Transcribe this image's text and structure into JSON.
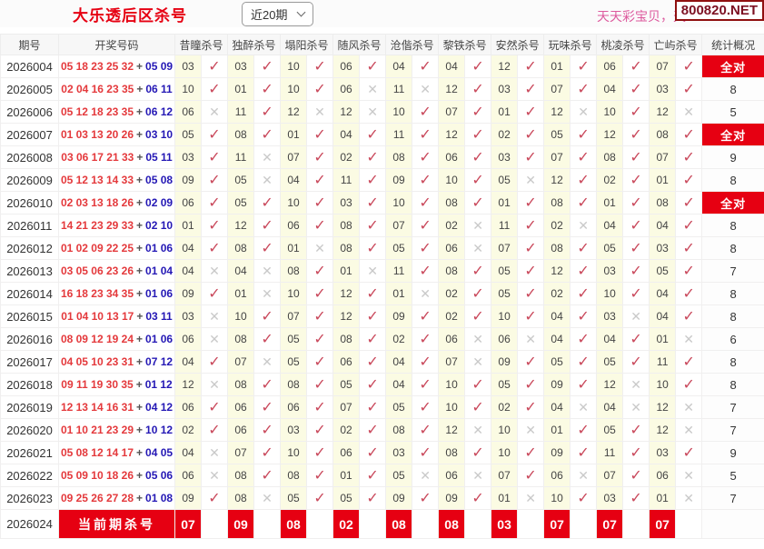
{
  "topbar": {
    "title": "大乐透后区杀号",
    "range_dropdown": "近20期",
    "watermark": "天天彩宝贝，天",
    "site_badge": "800820.NET"
  },
  "marks": {
    "hit": "✓",
    "miss": "✕"
  },
  "table": {
    "columns": [
      "期号",
      "开奖号码",
      "昔瞳杀号",
      "独醉杀号",
      "塌阳杀号",
      "随风杀号",
      "沧偕杀号",
      "黎铁杀号",
      "安然杀号",
      "玩味杀号",
      "桃凌杀号",
      "亡屿杀号",
      "统计概况"
    ],
    "plus_sign": "+",
    "full_match_label": "全对",
    "rows": [
      {
        "period": "2026004",
        "front": "05 18 23 25 32",
        "back": "05 09",
        "kills": [
          [
            "03",
            1
          ],
          [
            "03",
            1
          ],
          [
            "10",
            1
          ],
          [
            "06",
            1
          ],
          [
            "04",
            1
          ],
          [
            "04",
            1
          ],
          [
            "12",
            1
          ],
          [
            "01",
            1
          ],
          [
            "06",
            1
          ],
          [
            "07",
            1
          ]
        ],
        "stat": "全对"
      },
      {
        "period": "2026005",
        "front": "02 04 16 23 35",
        "back": "06 11",
        "kills": [
          [
            "10",
            1
          ],
          [
            "01",
            1
          ],
          [
            "10",
            1
          ],
          [
            "06",
            0
          ],
          [
            "11",
            0
          ],
          [
            "12",
            1
          ],
          [
            "03",
            1
          ],
          [
            "07",
            1
          ],
          [
            "04",
            1
          ],
          [
            "03",
            1
          ]
        ],
        "stat": "8"
      },
      {
        "period": "2026006",
        "front": "05 12 18 23 35",
        "back": "06 12",
        "kills": [
          [
            "06",
            0
          ],
          [
            "11",
            1
          ],
          [
            "12",
            0
          ],
          [
            "12",
            0
          ],
          [
            "10",
            1
          ],
          [
            "07",
            1
          ],
          [
            "01",
            1
          ],
          [
            "12",
            0
          ],
          [
            "10",
            1
          ],
          [
            "12",
            0
          ]
        ],
        "stat": "5"
      },
      {
        "period": "2026007",
        "front": "01 03 13 20 26",
        "back": "03 10",
        "kills": [
          [
            "05",
            1
          ],
          [
            "08",
            1
          ],
          [
            "01",
            1
          ],
          [
            "04",
            1
          ],
          [
            "11",
            1
          ],
          [
            "12",
            1
          ],
          [
            "02",
            1
          ],
          [
            "05",
            1
          ],
          [
            "12",
            1
          ],
          [
            "08",
            1
          ]
        ],
        "stat": "全对"
      },
      {
        "period": "2026008",
        "front": "03 06 17 21 33",
        "back": "05 11",
        "kills": [
          [
            "03",
            1
          ],
          [
            "11",
            0
          ],
          [
            "07",
            1
          ],
          [
            "02",
            1
          ],
          [
            "08",
            1
          ],
          [
            "06",
            1
          ],
          [
            "03",
            1
          ],
          [
            "07",
            1
          ],
          [
            "08",
            1
          ],
          [
            "07",
            1
          ]
        ],
        "stat": "9"
      },
      {
        "period": "2026009",
        "front": "05 12 13 14 33",
        "back": "05 08",
        "kills": [
          [
            "09",
            1
          ],
          [
            "05",
            0
          ],
          [
            "04",
            1
          ],
          [
            "11",
            1
          ],
          [
            "09",
            1
          ],
          [
            "10",
            1
          ],
          [
            "05",
            0
          ],
          [
            "12",
            1
          ],
          [
            "02",
            1
          ],
          [
            "01",
            1
          ]
        ],
        "stat": "8"
      },
      {
        "period": "2026010",
        "front": "02 03 13 18 26",
        "back": "02 09",
        "kills": [
          [
            "06",
            1
          ],
          [
            "05",
            1
          ],
          [
            "10",
            1
          ],
          [
            "03",
            1
          ],
          [
            "10",
            1
          ],
          [
            "08",
            1
          ],
          [
            "01",
            1
          ],
          [
            "08",
            1
          ],
          [
            "01",
            1
          ],
          [
            "08",
            1
          ]
        ],
        "stat": "全对"
      },
      {
        "period": "2026011",
        "front": "14 21 23 29 33",
        "back": "02 10",
        "kills": [
          [
            "01",
            1
          ],
          [
            "12",
            1
          ],
          [
            "06",
            1
          ],
          [
            "08",
            1
          ],
          [
            "07",
            1
          ],
          [
            "02",
            0
          ],
          [
            "11",
            1
          ],
          [
            "02",
            0
          ],
          [
            "04",
            1
          ],
          [
            "04",
            1
          ]
        ],
        "stat": "8"
      },
      {
        "period": "2026012",
        "front": "01 02 09 22 25",
        "back": "01 06",
        "kills": [
          [
            "04",
            1
          ],
          [
            "08",
            1
          ],
          [
            "01",
            0
          ],
          [
            "08",
            1
          ],
          [
            "05",
            1
          ],
          [
            "06",
            0
          ],
          [
            "07",
            1
          ],
          [
            "08",
            1
          ],
          [
            "05",
            1
          ],
          [
            "03",
            1
          ]
        ],
        "stat": "8"
      },
      {
        "period": "2026013",
        "front": "03 05 06 23 26",
        "back": "01 04",
        "kills": [
          [
            "04",
            0
          ],
          [
            "04",
            0
          ],
          [
            "08",
            1
          ],
          [
            "01",
            0
          ],
          [
            "11",
            1
          ],
          [
            "08",
            1
          ],
          [
            "05",
            1
          ],
          [
            "12",
            1
          ],
          [
            "03",
            1
          ],
          [
            "05",
            1
          ]
        ],
        "stat": "7"
      },
      {
        "period": "2026014",
        "front": "16 18 23 34 35",
        "back": "01 06",
        "kills": [
          [
            "09",
            1
          ],
          [
            "01",
            0
          ],
          [
            "10",
            1
          ],
          [
            "12",
            1
          ],
          [
            "01",
            0
          ],
          [
            "02",
            1
          ],
          [
            "05",
            1
          ],
          [
            "02",
            1
          ],
          [
            "10",
            1
          ],
          [
            "04",
            1
          ]
        ],
        "stat": "8"
      },
      {
        "period": "2026015",
        "front": "01 04 10 13 17",
        "back": "03 11",
        "kills": [
          [
            "03",
            0
          ],
          [
            "10",
            1
          ],
          [
            "07",
            1
          ],
          [
            "12",
            1
          ],
          [
            "09",
            1
          ],
          [
            "02",
            1
          ],
          [
            "10",
            1
          ],
          [
            "04",
            1
          ],
          [
            "03",
            0
          ],
          [
            "04",
            1
          ]
        ],
        "stat": "8"
      },
      {
        "period": "2026016",
        "front": "08 09 12 19 24",
        "back": "01 06",
        "kills": [
          [
            "06",
            0
          ],
          [
            "08",
            1
          ],
          [
            "05",
            1
          ],
          [
            "08",
            1
          ],
          [
            "02",
            1
          ],
          [
            "06",
            0
          ],
          [
            "06",
            0
          ],
          [
            "04",
            1
          ],
          [
            "04",
            1
          ],
          [
            "01",
            0
          ]
        ],
        "stat": "6"
      },
      {
        "period": "2026017",
        "front": "04 05 10 23 31",
        "back": "07 12",
        "kills": [
          [
            "04",
            1
          ],
          [
            "07",
            0
          ],
          [
            "05",
            1
          ],
          [
            "06",
            1
          ],
          [
            "04",
            1
          ],
          [
            "07",
            0
          ],
          [
            "09",
            1
          ],
          [
            "05",
            1
          ],
          [
            "05",
            1
          ],
          [
            "11",
            1
          ]
        ],
        "stat": "8"
      },
      {
        "period": "2026018",
        "front": "09 11 19 30 35",
        "back": "01 12",
        "kills": [
          [
            "12",
            0
          ],
          [
            "08",
            1
          ],
          [
            "08",
            1
          ],
          [
            "05",
            1
          ],
          [
            "04",
            1
          ],
          [
            "10",
            1
          ],
          [
            "05",
            1
          ],
          [
            "09",
            1
          ],
          [
            "12",
            0
          ],
          [
            "10",
            1
          ]
        ],
        "stat": "8"
      },
      {
        "period": "2026019",
        "front": "12 13 14 16 31",
        "back": "04 12",
        "kills": [
          [
            "06",
            1
          ],
          [
            "06",
            1
          ],
          [
            "06",
            1
          ],
          [
            "07",
            1
          ],
          [
            "05",
            1
          ],
          [
            "10",
            1
          ],
          [
            "02",
            1
          ],
          [
            "04",
            0
          ],
          [
            "04",
            0
          ],
          [
            "12",
            0
          ]
        ],
        "stat": "7"
      },
      {
        "period": "2026020",
        "front": "01 10 21 23 29",
        "back": "10 12",
        "kills": [
          [
            "02",
            1
          ],
          [
            "06",
            1
          ],
          [
            "03",
            1
          ],
          [
            "02",
            1
          ],
          [
            "08",
            1
          ],
          [
            "12",
            0
          ],
          [
            "10",
            0
          ],
          [
            "01",
            1
          ],
          [
            "05",
            1
          ],
          [
            "12",
            0
          ]
        ],
        "stat": "7"
      },
      {
        "period": "2026021",
        "front": "05 08 12 14 17",
        "back": "04 05",
        "kills": [
          [
            "04",
            0
          ],
          [
            "07",
            1
          ],
          [
            "10",
            1
          ],
          [
            "06",
            1
          ],
          [
            "03",
            1
          ],
          [
            "08",
            1
          ],
          [
            "10",
            1
          ],
          [
            "09",
            1
          ],
          [
            "11",
            1
          ],
          [
            "03",
            1
          ]
        ],
        "stat": "9"
      },
      {
        "period": "2026022",
        "front": "05 09 10 18 26",
        "back": "05 06",
        "kills": [
          [
            "06",
            0
          ],
          [
            "08",
            1
          ],
          [
            "08",
            1
          ],
          [
            "01",
            1
          ],
          [
            "05",
            0
          ],
          [
            "06",
            0
          ],
          [
            "07",
            1
          ],
          [
            "06",
            0
          ],
          [
            "07",
            1
          ],
          [
            "06",
            0
          ]
        ],
        "stat": "5"
      },
      {
        "period": "2026023",
        "front": "09 25 26 27 28",
        "back": "01 08",
        "kills": [
          [
            "09",
            1
          ],
          [
            "08",
            0
          ],
          [
            "05",
            1
          ],
          [
            "05",
            1
          ],
          [
            "09",
            1
          ],
          [
            "09",
            1
          ],
          [
            "01",
            0
          ],
          [
            "10",
            1
          ],
          [
            "03",
            1
          ],
          [
            "01",
            0
          ]
        ],
        "stat": "7"
      }
    ],
    "current": {
      "period": "2026024",
      "banner": "当前期杀号",
      "kills": [
        "07",
        "09",
        "08",
        "02",
        "08",
        "08",
        "03",
        "07",
        "07",
        "07"
      ]
    }
  }
}
